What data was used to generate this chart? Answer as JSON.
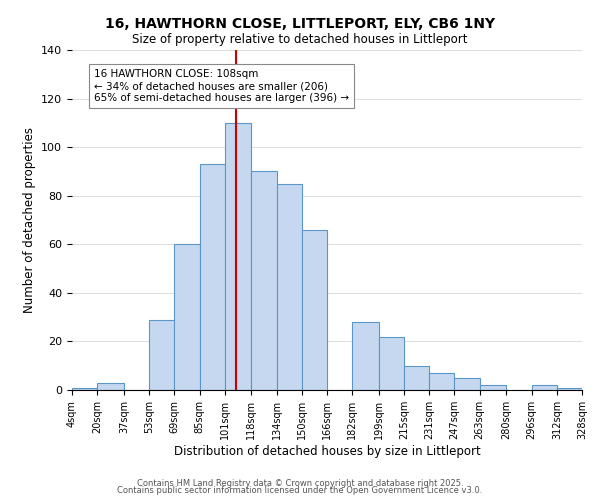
{
  "title": "16, HAWTHORN CLOSE, LITTLEPORT, ELY, CB6 1NY",
  "subtitle": "Size of property relative to detached houses in Littleport",
  "xlabel": "Distribution of detached houses by size in Littleport",
  "ylabel": "Number of detached properties",
  "bar_color": "#c5d8f0",
  "bar_edge_color": "#5a96c8",
  "background_color": "#ffffff",
  "grid_color": "#dddddd",
  "vline_color": "#cc0000",
  "vline_x": 108,
  "footer_line1": "Contains HM Land Registry data © Crown copyright and database right 2025.",
  "footer_line2": "Contains public sector information licensed under the Open Government Licence v3.0.",
  "annotation_title": "16 HAWTHORN CLOSE: 108sqm",
  "annotation_line2": "← 34% of detached houses are smaller (206)",
  "annotation_line3": "65% of semi-detached houses are larger (396) →",
  "bin_edges": [
    4,
    20,
    37,
    53,
    69,
    85,
    101,
    118,
    134,
    150,
    166,
    182,
    199,
    215,
    231,
    247,
    263,
    280,
    296,
    312,
    328
  ],
  "bin_counts": [
    1,
    3,
    0,
    29,
    60,
    93,
    110,
    90,
    85,
    66,
    0,
    28,
    22,
    10,
    7,
    5,
    2,
    0,
    2,
    1
  ],
  "ylim": [
    0,
    140
  ],
  "yticks": [
    0,
    20,
    40,
    60,
    80,
    100,
    120,
    140
  ]
}
